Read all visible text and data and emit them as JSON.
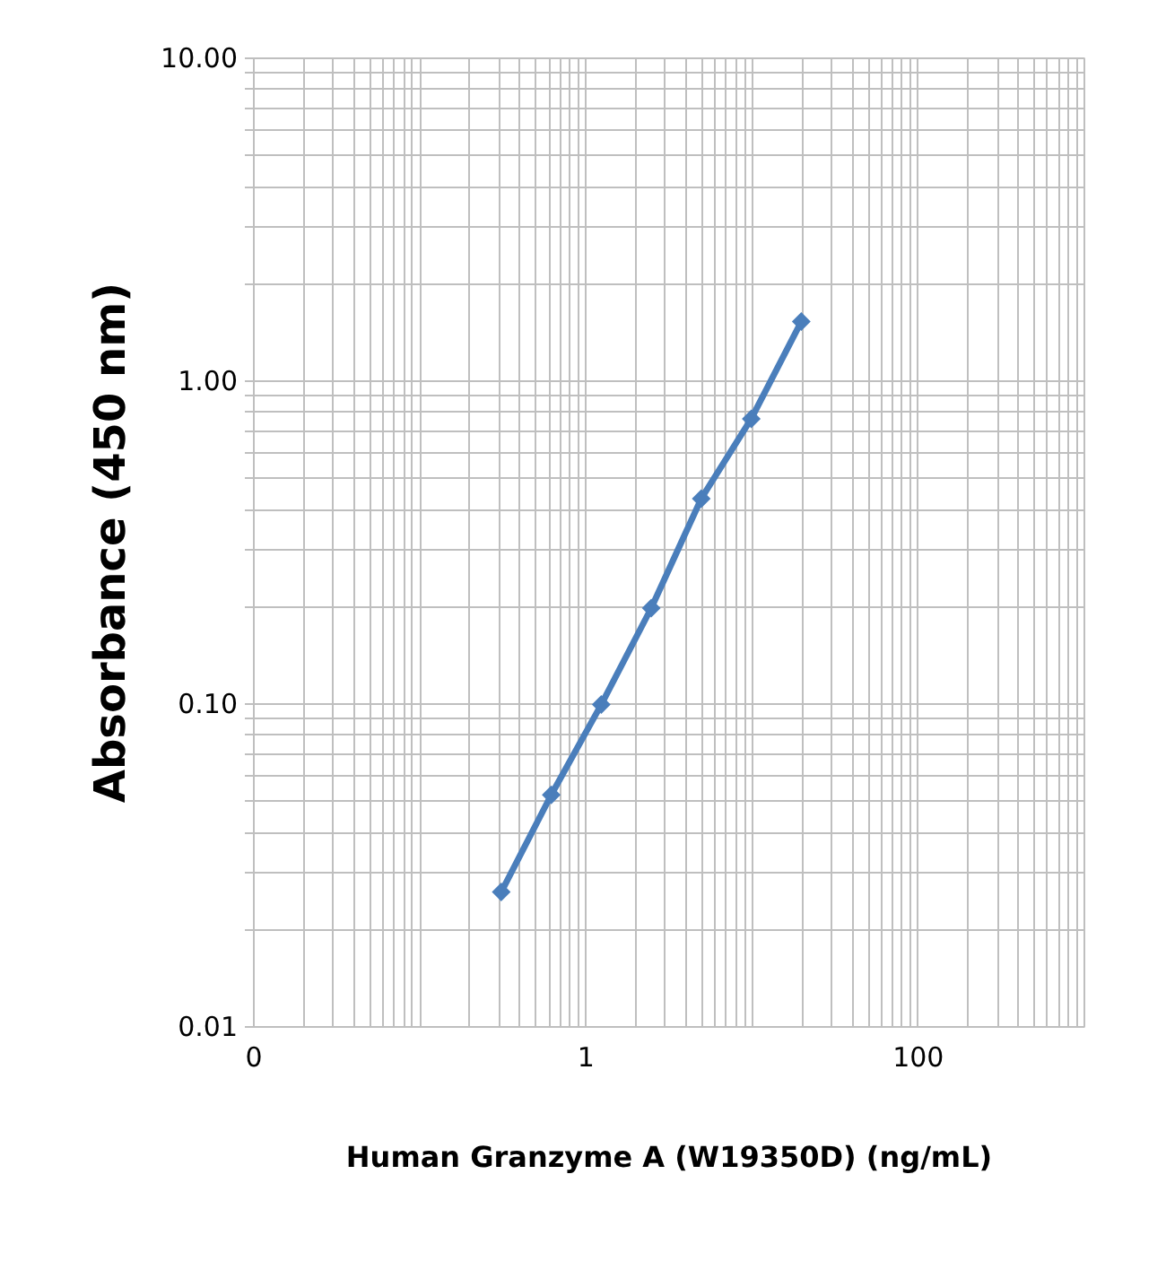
{
  "chart_data": {
    "type": "line",
    "xlabel": "Human Granzyme A (W19350D) (ng/mL)",
    "ylabel": "Absorbance (450 nm)",
    "log": "xy",
    "grid": true,
    "marker": "diamond",
    "line_style": "solid",
    "xlim": [
      0.01,
      1000
    ],
    "ylim": [
      0.01,
      10
    ],
    "xticks": [
      {
        "value": 0.01,
        "label": "0"
      },
      {
        "value": 0.02,
        "label": null
      },
      {
        "value": 0.03,
        "label": null
      },
      {
        "value": 0.04,
        "label": null
      },
      {
        "value": 0.05,
        "label": null
      },
      {
        "value": 0.06,
        "label": null
      },
      {
        "value": 0.07,
        "label": null
      },
      {
        "value": 0.08,
        "label": null
      },
      {
        "value": 0.09,
        "label": null
      },
      {
        "value": 0.1,
        "label": null
      },
      {
        "value": 0.2,
        "label": null
      },
      {
        "value": 0.3,
        "label": null
      },
      {
        "value": 0.4,
        "label": null
      },
      {
        "value": 0.5,
        "label": null
      },
      {
        "value": 0.6,
        "label": null
      },
      {
        "value": 0.7,
        "label": null
      },
      {
        "value": 0.8,
        "label": null
      },
      {
        "value": 0.9,
        "label": null
      },
      1,
      {
        "value": 2,
        "label": null
      },
      {
        "value": 3,
        "label": null
      },
      {
        "value": 4,
        "label": null
      },
      {
        "value": 5,
        "label": null
      },
      {
        "value": 6,
        "label": null
      },
      {
        "value": 7,
        "label": null
      },
      {
        "value": 8,
        "label": null
      },
      {
        "value": 9,
        "label": null
      },
      {
        "value": 10,
        "label": null
      },
      {
        "value": 20,
        "label": null
      },
      {
        "value": 30,
        "label": null
      },
      {
        "value": 40,
        "label": null
      },
      {
        "value": 50,
        "label": null
      },
      {
        "value": 60,
        "label": null
      },
      {
        "value": 70,
        "label": null
      },
      {
        "value": 80,
        "label": null
      },
      {
        "value": 90,
        "label": null
      },
      100,
      {
        "value": 200,
        "label": null
      },
      {
        "value": 300,
        "label": null
      },
      {
        "value": 400,
        "label": null
      },
      {
        "value": 500,
        "label": null
      },
      {
        "value": 600,
        "label": null
      },
      {
        "value": 700,
        "label": null
      },
      {
        "value": 800,
        "label": null
      },
      {
        "value": 900,
        "label": null
      },
      {
        "value": 1000,
        "label": null
      }
    ],
    "yticks": [
      {
        "value": 0.01,
        "label": "0.01"
      },
      {
        "value": 0.02,
        "label": null
      },
      {
        "value": 0.03,
        "label": null
      },
      {
        "value": 0.04,
        "label": null
      },
      {
        "value": 0.05,
        "label": null
      },
      {
        "value": 0.06,
        "label": null
      },
      {
        "value": 0.07,
        "label": null
      },
      {
        "value": 0.08,
        "label": null
      },
      {
        "value": 0.09,
        "label": null
      },
      {
        "value": 0.1,
        "label": "0.10"
      },
      {
        "value": 0.2,
        "label": null
      },
      {
        "value": 0.3,
        "label": null
      },
      {
        "value": 0.4,
        "label": null
      },
      {
        "value": 0.5,
        "label": null
      },
      {
        "value": 0.6,
        "label": null
      },
      {
        "value": 0.7,
        "label": null
      },
      {
        "value": 0.8,
        "label": null
      },
      {
        "value": 0.9,
        "label": null
      },
      {
        "value": 1,
        "label": "1.00"
      },
      {
        "value": 2,
        "label": null
      },
      {
        "value": 3,
        "label": null
      },
      {
        "value": 4,
        "label": null
      },
      {
        "value": 5,
        "label": null
      },
      {
        "value": 6,
        "label": null
      },
      {
        "value": 7,
        "label": null
      },
      {
        "value": 8,
        "label": null
      },
      {
        "value": 9,
        "label": null
      },
      {
        "value": 10,
        "label": "10.00"
      }
    ],
    "x": [
      0.3125,
      0.625,
      1.25,
      2.5,
      5,
      10,
      20
    ],
    "series": [
      {
        "color": "#4a7ebb",
        "values": [
          0.026,
          0.052,
          0.099,
          0.197,
          0.43,
          0.76,
          1.52
        ]
      }
    ]
  }
}
